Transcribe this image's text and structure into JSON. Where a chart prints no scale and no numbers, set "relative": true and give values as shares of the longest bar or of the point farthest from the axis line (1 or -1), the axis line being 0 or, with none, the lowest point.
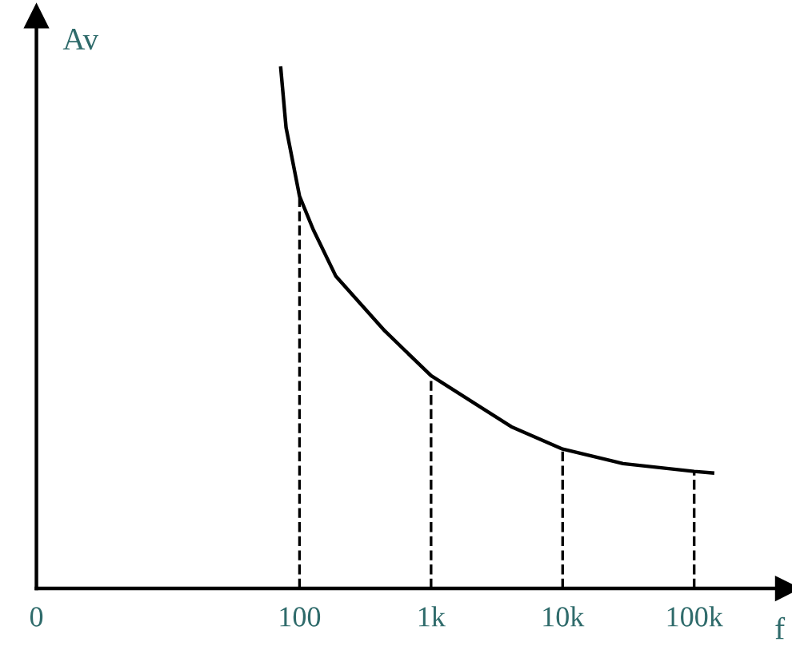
{
  "chart_data": {
    "type": "line",
    "relative": true,
    "xlabel": "f",
    "ylabel": "Av",
    "log": "x",
    "x": [
      72,
      79,
      100,
      127,
      189,
      445,
      1000,
      4070,
      10000,
      28800,
      100000,
      138000
    ],
    "series": [
      {
        "color": "#000000",
        "values": [
          1.0,
          0.886,
          0.754,
          0.69,
          0.6,
          0.495,
          0.409,
          0.311,
          0.268,
          0.24,
          0.225,
          0.222
        ]
      }
    ],
    "xlim": [
      0,
      510000
    ],
    "xticks": [
      0,
      {
        "value": 100,
        "label": "100"
      },
      {
        "value": 1000,
        "label": "1k"
      },
      {
        "value": 10000,
        "label": "10k"
      },
      {
        "value": 100000,
        "label": "100k"
      }
    ],
    "ref_lines": [
      {
        "axis": "x",
        "value": 100,
        "color": "#000000",
        "line_style": "dashed"
      },
      {
        "axis": "x",
        "value": 1000,
        "color": "#000000",
        "line_style": "dashed"
      },
      {
        "axis": "x",
        "value": 10000,
        "color": "#000000",
        "line_style": "dashed"
      },
      {
        "axis": "x",
        "value": 100000,
        "color": "#000000",
        "line_style": "dashed"
      }
    ],
    "grid": false,
    "legend": false,
    "marker": "none",
    "line_style": "solid"
  }
}
